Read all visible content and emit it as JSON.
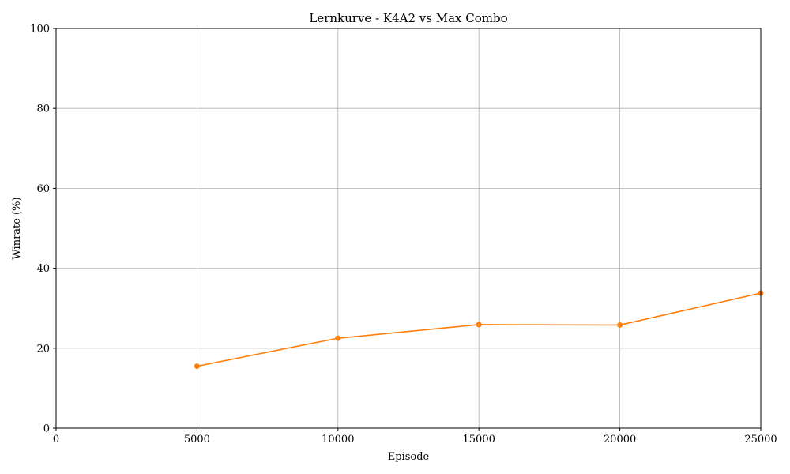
{
  "chart_data": {
    "type": "line",
    "title": "Lernkurve - K4A2 vs Max Combo",
    "xlabel": "Episode",
    "ylabel": "Winrate (%)",
    "xlim": [
      0,
      25000
    ],
    "ylim": [
      0,
      100
    ],
    "xticks": [
      0,
      5000,
      10000,
      15000,
      20000,
      25000
    ],
    "yticks": [
      0,
      20,
      40,
      60,
      80,
      100
    ],
    "grid": true,
    "series": [
      {
        "color": "#ff7f0e",
        "marker": "circle",
        "x": [
          5000,
          10000,
          15000,
          20000,
          25000
        ],
        "y": [
          15.5,
          22.5,
          25.9,
          25.8,
          33.8
        ]
      }
    ]
  }
}
